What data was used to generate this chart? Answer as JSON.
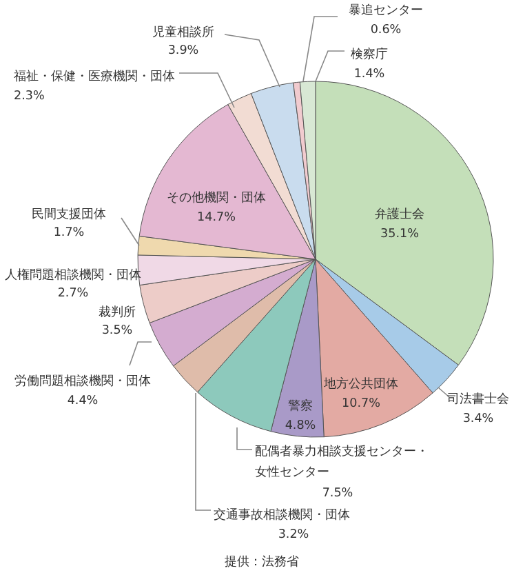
{
  "chart_data": {
    "type": "pie",
    "categories": [
      "弁護士会",
      "司法書士会",
      "地方公共団体",
      "警察",
      "配偶者暴力相談支援センター・女性センター",
      "交通事故相談機関・団体",
      "労働問題相談機関・団体",
      "裁判所",
      "人権問題相談機関・団体",
      "民間支援団体",
      "その他機関・団体",
      "福祉・保健・医療機関・団体",
      "児童相談所",
      "暴追センター",
      "検察庁"
    ],
    "values": [
      35.1,
      3.4,
      10.7,
      4.8,
      7.5,
      3.2,
      4.4,
      3.5,
      2.7,
      1.7,
      14.7,
      2.3,
      3.9,
      0.6,
      1.4
    ],
    "value_labels": [
      "35.1%",
      "3.4%",
      "10.7%",
      "4.8%",
      "7.5%",
      "3.2%",
      "4.4%",
      "3.5%",
      "2.7%",
      "1.7%",
      "14.7%",
      "2.3%",
      "3.9%",
      "0.6%",
      "1.4%"
    ],
    "colors": [
      "#c4dfb9",
      "#a7cbe8",
      "#e3aaa3",
      "#a99ac8",
      "#8dc9bc",
      "#dfbcaa",
      "#d4acd0",
      "#edccc8",
      "#f0d9e6",
      "#efd9ae",
      "#e4b8d2",
      "#f2dcd3",
      "#c9dcee",
      "#f1cbcf",
      "#d8e8d4"
    ],
    "annotations": [
      "提供：法務省"
    ]
  }
}
